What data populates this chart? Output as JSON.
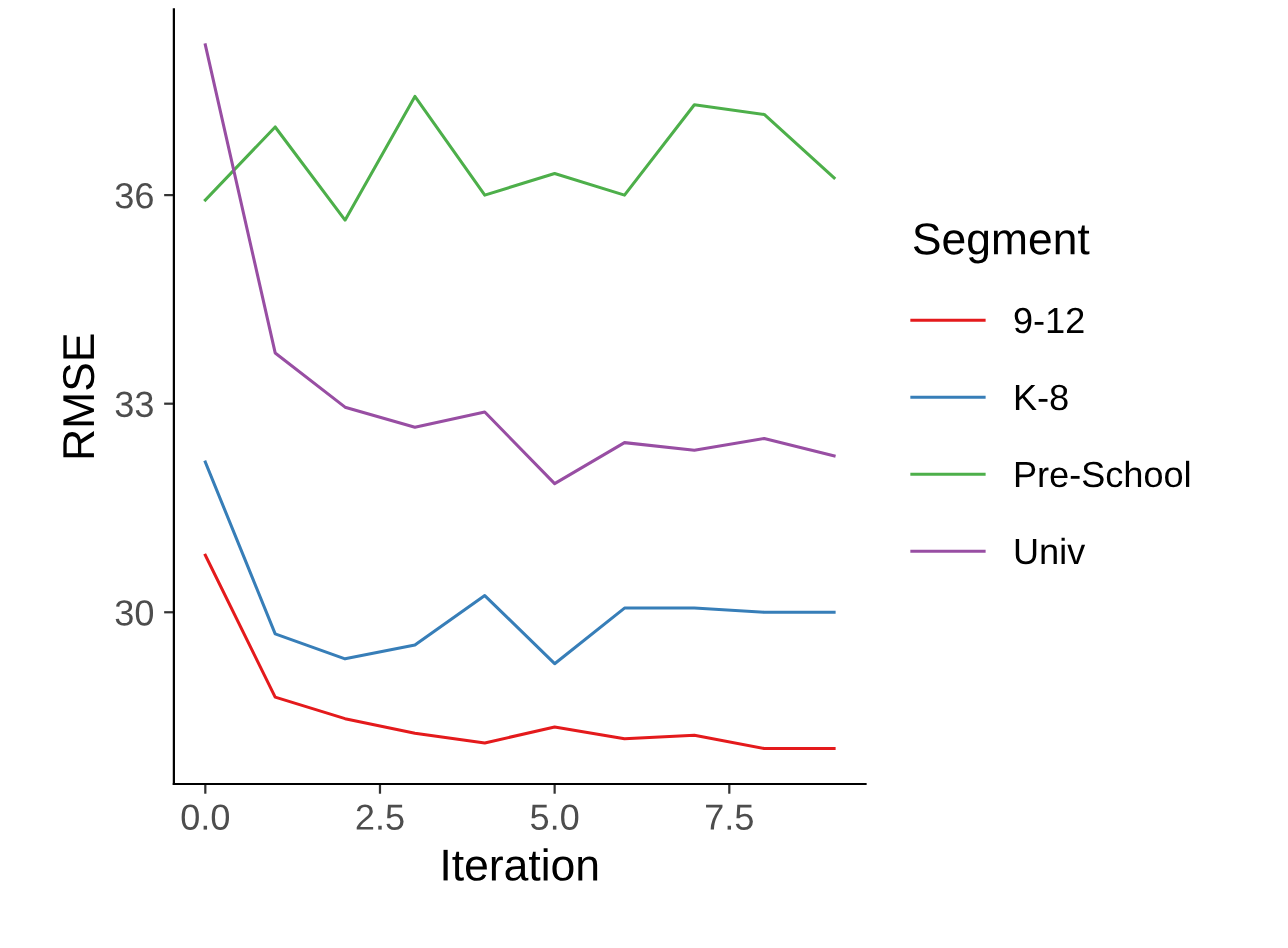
{
  "chart_data": {
    "type": "line",
    "xlabel": "Iteration",
    "ylabel": "RMSE",
    "legend_title": "Segment",
    "x": [
      0,
      1,
      2,
      3,
      4,
      5,
      6,
      7,
      8,
      9
    ],
    "series": [
      {
        "name": "9-12",
        "color": "#e41a1c",
        "values": [
          30.82,
          28.78,
          28.47,
          28.26,
          28.12,
          28.35,
          28.18,
          28.23,
          28.04,
          28.04
        ]
      },
      {
        "name": "K-8",
        "color": "#377eb8",
        "values": [
          32.16,
          29.69,
          29.33,
          29.53,
          30.24,
          29.26,
          30.06,
          30.06,
          30.0,
          30.0
        ]
      },
      {
        "name": "Pre-School",
        "color": "#4daf4a",
        "values": [
          35.93,
          36.98,
          35.64,
          37.42,
          36.0,
          36.31,
          36.0,
          37.3,
          37.16,
          36.25
        ]
      },
      {
        "name": "Univ",
        "color": "#984ea3",
        "values": [
          38.16,
          33.73,
          32.95,
          32.66,
          32.88,
          31.85,
          32.44,
          32.33,
          32.5,
          32.25
        ]
      }
    ],
    "xlim": [
      -0.45,
      9.45
    ],
    "xticks": [
      {
        "value": 0,
        "label": "0.0"
      },
      {
        "value": 2.5,
        "label": "2.5"
      },
      {
        "value": 5,
        "label": "5.0"
      },
      {
        "value": 7.5,
        "label": "7.5"
      }
    ],
    "ylim": [
      27.53,
      38.67
    ],
    "yticks": [
      30,
      33,
      36
    ],
    "grid": false,
    "legend": "right",
    "marker": "none",
    "line_style": "solid"
  }
}
